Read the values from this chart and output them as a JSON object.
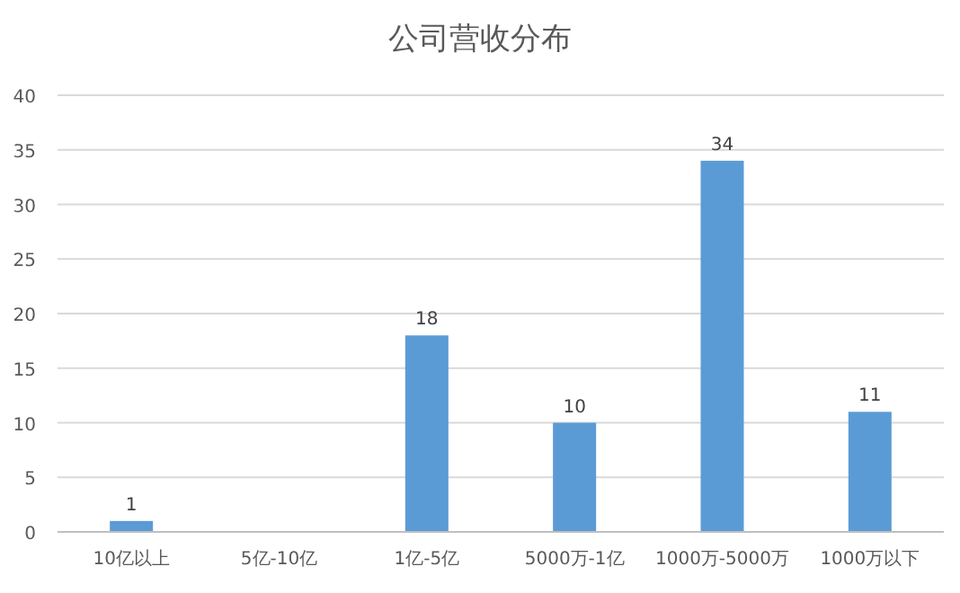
{
  "chart_data": {
    "type": "bar",
    "title": "公司营收分布",
    "categories": [
      "10亿以上",
      "5亿-10亿",
      "1亿-5亿",
      "5000万-1亿",
      "1000万-5000万",
      "1000万以下"
    ],
    "values": [
      1,
      null,
      18,
      10,
      34,
      11
    ],
    "value_labels": [
      "1",
      null,
      "18",
      "10",
      "34",
      "11"
    ],
    "color": "#5b9bd5",
    "ylim": [
      0,
      40
    ],
    "yticks": [
      0,
      5,
      10,
      15,
      20,
      25,
      30,
      35,
      40
    ],
    "grid": "y"
  }
}
